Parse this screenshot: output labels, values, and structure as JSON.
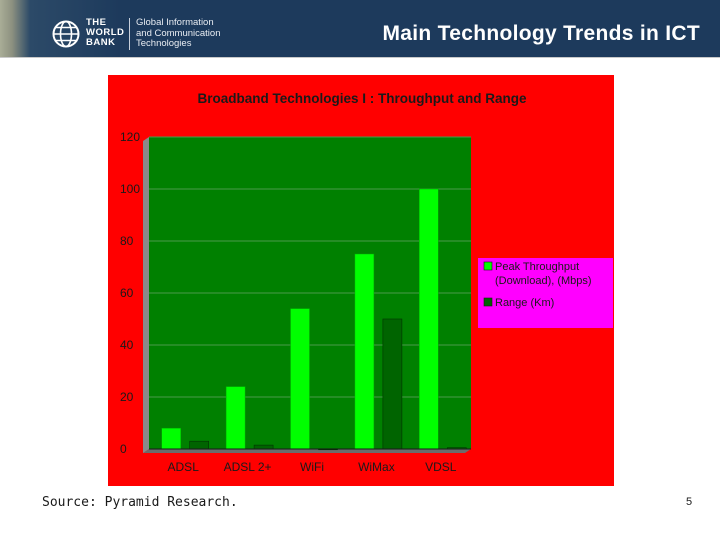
{
  "header": {
    "logo_line1": "THE",
    "logo_line2": "WORLD",
    "logo_line3": "BANK",
    "unit_line1": "Global Information",
    "unit_line2": "and Communication",
    "unit_line3": "Technologies",
    "title": "Main Technology Trends in ICT"
  },
  "colors": {
    "header_bg": "#1d3a5c",
    "chart_outer_bg": "#ff0000",
    "plot_bg": "#008000",
    "legend_bg": "#ff00ff",
    "series_peak": "#00ff00",
    "series_range": "#006400"
  },
  "chart_data": {
    "type": "bar",
    "title": "Broadband Technologies I : Throughput and Range",
    "categories": [
      "ADSL",
      "ADSL 2+",
      "WiFi",
      "WiMax",
      "VDSL"
    ],
    "series": [
      {
        "name": "Peak Throughput (Download), (Mbps)",
        "name_lines": [
          "Peak Throughput",
          "(Download), (Mbps)"
        ],
        "values": [
          8,
          24,
          54,
          75,
          100
        ]
      },
      {
        "name": "Range (Km)",
        "name_lines": [
          "Range (Km)"
        ],
        "values": [
          3,
          1.5,
          0.1,
          50,
          0.5
        ]
      }
    ],
    "ylim": [
      0,
      120
    ],
    "yticks": [
      0,
      20,
      40,
      60,
      80,
      100,
      120
    ],
    "grid": true,
    "legend_position": "right"
  },
  "footer": {
    "source": "Source: Pyramid Research.",
    "page_number": "5"
  }
}
